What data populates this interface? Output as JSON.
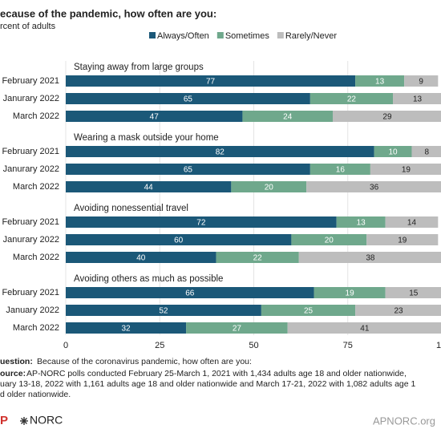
{
  "chart_data": {
    "type": "stacked-barh",
    "title": "ecause of the pandemic, how often are you:",
    "subtitle": "rcent of adults",
    "series": [
      {
        "name": "Always/Often",
        "color": "#1b5878"
      },
      {
        "name": "Sometimes",
        "color": "#6fa88c"
      },
      {
        "name": "Rarely/Never",
        "color": "#bdbdbd"
      }
    ],
    "groups": [
      {
        "title": "Staying away from large groups",
        "categories": [
          "February 2021",
          "Janurary 2022",
          "March 2022"
        ],
        "values": [
          [
            77,
            65,
            47
          ],
          [
            13,
            22,
            24
          ],
          [
            9,
            13,
            29
          ]
        ]
      },
      {
        "title": "Wearing a mask outside your home",
        "categories": [
          "February 2021",
          "Janurary 2022",
          "March 2022"
        ],
        "values": [
          [
            82,
            65,
            44
          ],
          [
            10,
            16,
            20
          ],
          [
            8,
            19,
            36
          ]
        ]
      },
      {
        "title": "Avoiding nonessential travel",
        "categories": [
          "February 2021",
          "Janurary 2022",
          "March 2022"
        ],
        "values": [
          [
            72,
            60,
            40
          ],
          [
            13,
            20,
            22
          ],
          [
            14,
            19,
            38
          ]
        ]
      },
      {
        "title": "Avoiding others as much as possible",
        "categories": [
          "February 2021",
          "January 2022",
          "March 2022"
        ],
        "values": [
          [
            66,
            52,
            32
          ],
          [
            19,
            25,
            27
          ],
          [
            15,
            23,
            41
          ]
        ]
      }
    ],
    "xlim": [
      0,
      100
    ],
    "xticks": [
      0,
      25,
      50,
      75,
      {
        "value": 100,
        "label": "1"
      }
    ],
    "grid": true,
    "question_label": "uestion:",
    "question": "Because of the coronavirus pandemic, how often are you:",
    "source_label": "ource:",
    "source_lines": [
      "AP-NORC polls conducted February 25-March 1, 2021 with 1,434 adults age 18 and older nationwide,",
      "uary 13-18, 2022 with 1,161 adults age 18 and older nationwide and March 17-21, 2022 with 1,082 adults age 1",
      "d older nationwide."
    ],
    "brand_left": "P",
    "brand_norc": "NORC",
    "brand_right": "APNORC.org"
  }
}
